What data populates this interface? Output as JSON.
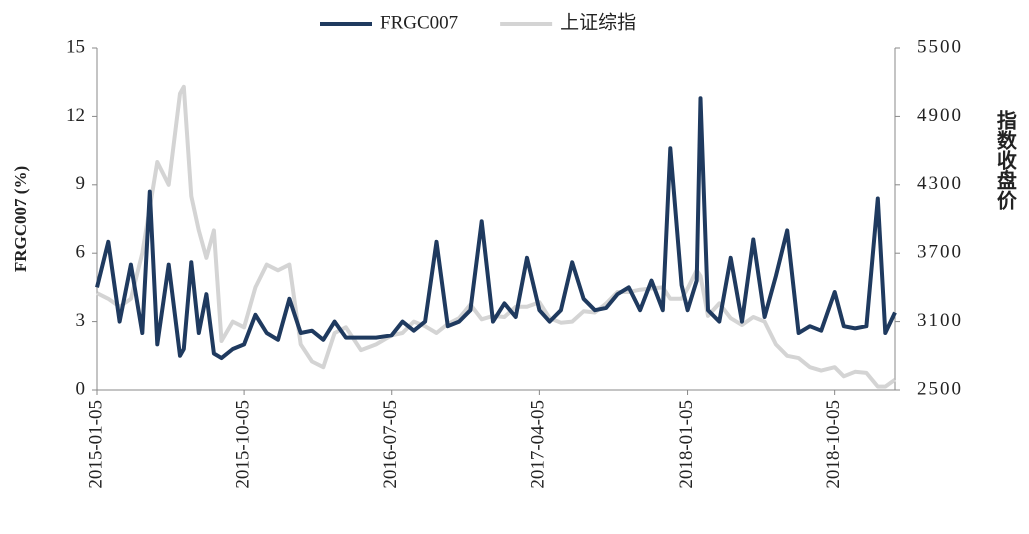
{
  "chart_data": {
    "type": "line",
    "y_label": "FRGC007 (%)",
    "y2_label": "指数收盘价",
    "x": [
      "2015-01-05",
      "2015-01-26",
      "2015-02-16",
      "2015-03-09",
      "2015-03-30",
      "2015-04-13",
      "2015-04-27",
      "2015-05-18",
      "2015-06-08",
      "2015-06-15",
      "2015-06-29",
      "2015-07-13",
      "2015-07-27",
      "2015-08-10",
      "2015-08-24",
      "2015-09-14",
      "2015-10-05",
      "2015-10-26",
      "2015-11-16",
      "2015-12-07",
      "2015-12-28",
      "2016-01-18",
      "2016-02-08",
      "2016-02-29",
      "2016-03-21",
      "2016-04-11",
      "2016-05-09",
      "2016-06-06",
      "2016-07-05",
      "2016-07-25",
      "2016-08-15",
      "2016-09-05",
      "2016-09-26",
      "2016-10-17",
      "2016-11-07",
      "2016-11-28",
      "2016-12-19",
      "2017-01-09",
      "2017-01-30",
      "2017-02-20",
      "2017-03-13",
      "2017-04-05",
      "2017-04-24",
      "2017-05-15",
      "2017-06-05",
      "2017-06-26",
      "2017-07-17",
      "2017-08-07",
      "2017-08-28",
      "2017-09-18",
      "2017-10-09",
      "2017-10-30",
      "2017-11-20",
      "2017-12-04",
      "2017-12-25",
      "2018-01-05",
      "2018-01-22",
      "2018-01-29",
      "2018-02-12",
      "2018-03-05",
      "2018-03-26",
      "2018-04-16",
      "2018-05-07",
      "2018-05-28",
      "2018-06-18",
      "2018-07-09",
      "2018-07-30",
      "2018-08-20",
      "2018-09-10",
      "2018-10-05",
      "2018-10-22",
      "2018-11-12",
      "2018-12-03",
      "2018-12-24",
      "2019-01-07",
      "2019-01-25"
    ],
    "series": [
      {
        "name": "FRGC007",
        "color": "#1f3a5f",
        "values": [
          4.5,
          6.5,
          3.0,
          5.5,
          2.5,
          8.7,
          2.0,
          5.5,
          1.5,
          1.8,
          5.6,
          2.5,
          4.2,
          1.6,
          1.4,
          1.8,
          2.0,
          3.3,
          2.5,
          2.2,
          4.0,
          2.5,
          2.6,
          2.2,
          3.0,
          2.3,
          2.3,
          2.3,
          2.4,
          3.0,
          2.6,
          3.0,
          6.5,
          2.8,
          3.0,
          3.5,
          7.4,
          3.0,
          3.8,
          3.2,
          5.8,
          3.5,
          3.0,
          3.5,
          5.6,
          4.0,
          3.5,
          3.6,
          4.2,
          4.5,
          3.5,
          4.8,
          3.5,
          10.6,
          4.6,
          3.5,
          4.8,
          12.8,
          3.5,
          3.0,
          5.8,
          3.0,
          6.6,
          3.2,
          5.0,
          7.0,
          2.5,
          2.8,
          2.6,
          4.3,
          2.8,
          2.7,
          2.8,
          8.4,
          2.5,
          3.4
        ]
      },
      {
        "name": "上证综指",
        "color": "#d4d4d4",
        "axis": "y2",
        "values": [
          3350,
          3300,
          3230,
          3300,
          3700,
          4100,
          4500,
          4300,
          5100,
          5160,
          4200,
          3900,
          3660,
          3900,
          2930,
          3100,
          3050,
          3400,
          3600,
          3550,
          3600,
          2900,
          2750,
          2700,
          3000,
          3050,
          2850,
          2900,
          2980,
          3000,
          3100,
          3060,
          3000,
          3080,
          3130,
          3250,
          3120,
          3150,
          3140,
          3230,
          3230,
          3270,
          3130,
          3090,
          3100,
          3190,
          3180,
          3260,
          3360,
          3360,
          3380,
          3390,
          3400,
          3300,
          3300,
          3390,
          3550,
          3500,
          3150,
          3260,
          3130,
          3070,
          3140,
          3100,
          2900,
          2800,
          2780,
          2700,
          2670,
          2700,
          2620,
          2660,
          2650,
          2530,
          2530,
          2590
        ]
      }
    ],
    "xlim": [
      "2015-01-05",
      "2019-01-25"
    ],
    "xticks": [
      "2015-01-05",
      "2015-10-05",
      "2016-07-05",
      "2017-04-05",
      "2018-01-05",
      "2018-10-05"
    ],
    "ylim": [
      0,
      15
    ],
    "yticks": [
      0,
      3,
      6,
      9,
      12,
      15
    ],
    "y2lim": [
      2500,
      5500
    ],
    "y2ticks": [
      2500,
      3100,
      3700,
      4300,
      4900,
      5500
    ],
    "grid": false,
    "legend": "top"
  }
}
